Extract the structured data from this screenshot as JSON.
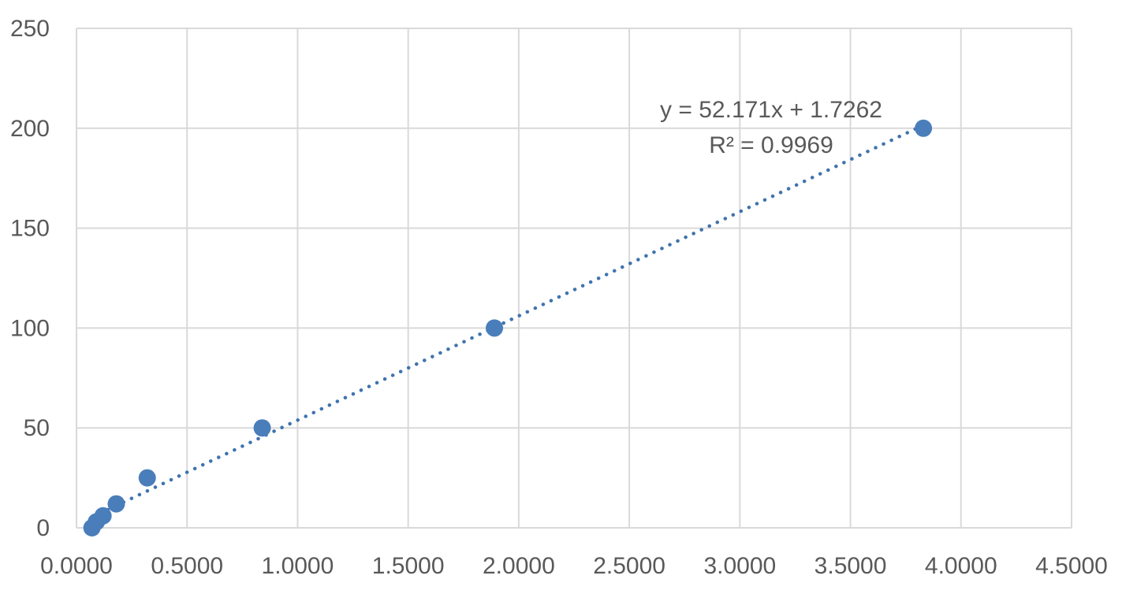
{
  "chart_data": {
    "type": "scatter",
    "title": "",
    "xlabel": "",
    "ylabel": "",
    "xlim": [
      0,
      4.5
    ],
    "ylim": [
      0,
      250
    ],
    "x_ticks": [
      0,
      0.5,
      1.0,
      1.5,
      2.0,
      2.5,
      3.0,
      3.5,
      4.0,
      4.5
    ],
    "x_tick_labels": [
      "0.0000",
      "0.5000",
      "1.0000",
      "1.5000",
      "2.0000",
      "2.5000",
      "3.0000",
      "3.5000",
      "4.0000",
      "4.5000"
    ],
    "y_ticks": [
      0,
      50,
      100,
      150,
      200,
      250
    ],
    "y_tick_labels": [
      "0",
      "50",
      "100",
      "150",
      "200",
      "250"
    ],
    "grid": true,
    "legend": "none",
    "series": [
      {
        "color": "#4a7ebb",
        "points": [
          {
            "x": 0.07,
            "y": 0
          },
          {
            "x": 0.09,
            "y": 3
          },
          {
            "x": 0.12,
            "y": 6
          },
          {
            "x": 0.18,
            "y": 12
          },
          {
            "x": 0.32,
            "y": 25
          },
          {
            "x": 0.84,
            "y": 50
          },
          {
            "x": 1.89,
            "y": 100
          },
          {
            "x": 3.83,
            "y": 200
          }
        ]
      }
    ],
    "trendline": {
      "type": "linear",
      "slope": 52.171,
      "intercept": 1.7262,
      "x_range": [
        0.07,
        3.83
      ],
      "color": "#3f73ae",
      "style": "dotted",
      "equation_label": "y = 52.171x + 1.7262",
      "r2_label": "R² = 0.9969"
    }
  }
}
